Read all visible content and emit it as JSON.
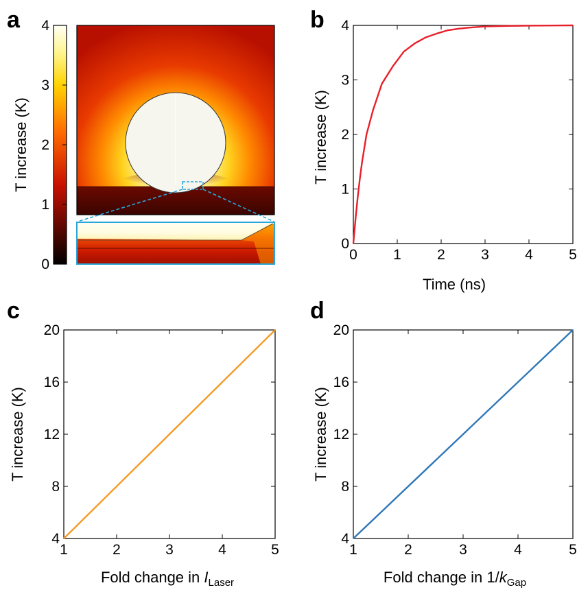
{
  "panel_labels": [
    "a",
    "b",
    "c",
    "d"
  ],
  "colors": {
    "curve_b": "#e8202b",
    "curve_c": "#f59a25",
    "curve_d": "#2f77b8",
    "inset_box": "#2aa6dc"
  },
  "chart_data": [
    {
      "panel": "a",
      "type": "heatmap",
      "colorbar": {
        "label": "T increase (K)",
        "ticks": [
          "0",
          "1",
          "2",
          "3",
          "4"
        ],
        "range": [
          0,
          4
        ],
        "colormap": "hot"
      },
      "inset": "zoom of particle-substrate gap"
    },
    {
      "panel": "b",
      "type": "line",
      "xlabel": "Time (ns)",
      "ylabel": "T increase (K)",
      "xlim": [
        0,
        5
      ],
      "ylim": [
        0,
        4
      ],
      "xticks": [
        "0",
        "1",
        "2",
        "3",
        "4",
        "5"
      ],
      "yticks": [
        "0",
        "1",
        "2",
        "3",
        "4"
      ],
      "series": [
        {
          "x": [
            0,
            0.05,
            0.1,
            0.15,
            0.2,
            0.3,
            0.45,
            0.65,
            0.9,
            1.15,
            1.4,
            1.65,
            1.9,
            2.15,
            2.4,
            2.65,
            3.0,
            3.5,
            4.0,
            4.5,
            5.0
          ],
          "values": [
            0,
            0.45,
            0.85,
            1.2,
            1.5,
            2.0,
            2.45,
            2.93,
            3.25,
            3.52,
            3.67,
            3.78,
            3.85,
            3.91,
            3.94,
            3.96,
            3.98,
            3.99,
            3.995,
            3.998,
            4.0
          ]
        }
      ],
      "grid": false
    },
    {
      "panel": "c",
      "type": "line",
      "xlabel": "Fold change in ",
      "xlabel_italic": "I",
      "xlabel_sub": "Laser",
      "ylabel": "T increase (K)",
      "xlim": [
        1,
        5
      ],
      "ylim": [
        4,
        20
      ],
      "xticks": [
        "1",
        "2",
        "3",
        "4",
        "5"
      ],
      "yticks": [
        "4",
        "8",
        "12",
        "16",
        "20"
      ],
      "series": [
        {
          "x": [
            1,
            5
          ],
          "values": [
            4,
            20
          ]
        }
      ],
      "grid": false
    },
    {
      "panel": "d",
      "type": "line",
      "xlabel": "Fold change in 1/",
      "xlabel_italic": "k",
      "xlabel_sub": "Gap",
      "ylabel": "T increase (K)",
      "xlim": [
        1,
        5
      ],
      "ylim": [
        4,
        20
      ],
      "xticks": [
        "1",
        "2",
        "3",
        "4",
        "5"
      ],
      "yticks": [
        "4",
        "8",
        "12",
        "16",
        "20"
      ],
      "series": [
        {
          "x": [
            1,
            5
          ],
          "values": [
            4,
            20
          ]
        }
      ],
      "grid": false
    }
  ]
}
